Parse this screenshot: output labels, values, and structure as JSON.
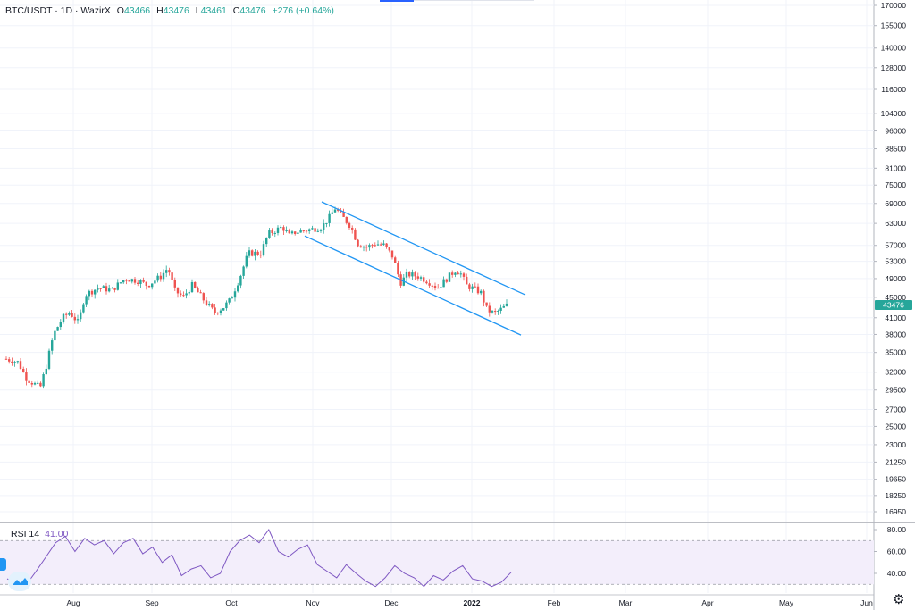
{
  "header": {
    "symbol": "BTC/USDT · 1D · WazirX",
    "open_label": "O",
    "open_value": "43466",
    "high_label": "H",
    "high_value": "43476",
    "low_label": "L",
    "low_value": "43461",
    "close_label": "C",
    "close_value": "43476",
    "change": "+276 (+0.64%)"
  },
  "rsi": {
    "label": "RSI 14",
    "value": "41.00"
  },
  "price_badge": "43476",
  "colors": {
    "up": "#26a69a",
    "down": "#ef5350",
    "channel": "#2196f3",
    "rsi": "#7e57c2",
    "rsi_band": "#f3eefb"
  },
  "icons": {
    "logo": "tradingview-logo-icon",
    "settings": "gear-icon"
  },
  "chart_data": [
    {
      "type": "candlestick",
      "title": "BTC/USDT · 1D · WazirX",
      "xlabel": "",
      "ylabel": "",
      "x_ticks": [
        "Aug",
        "Sep",
        "Oct",
        "Nov",
        "Dec",
        "2022",
        "Feb",
        "Mar",
        "Apr",
        "May",
        "Jun"
      ],
      "y_ticks": [
        170000,
        155000,
        140000,
        128000,
        116000,
        104000,
        96000,
        88500,
        81000,
        75000,
        69000,
        63000,
        57000,
        53000,
        49000,
        45000,
        41000,
        38000,
        35000,
        32000,
        29500,
        27000,
        25000,
        23000,
        21250,
        19650,
        18250,
        16950
      ],
      "y_scale": "log",
      "ylim": [
        16500,
        170000
      ],
      "last_price": 43476,
      "series": [
        {
          "ohlc_monthly_approx": [
            {
              "period": "late Jul",
              "open": 34500,
              "high": 35500,
              "low": 29500,
              "close": 35000
            },
            {
              "period": "Aug",
              "open": 41500,
              "high": 50000,
              "low": 37500,
              "close": 47000
            },
            {
              "period": "Sep",
              "open": 47000,
              "high": 52900,
              "low": 40500,
              "close": 43800
            },
            {
              "period": "Oct",
              "open": 43800,
              "high": 67000,
              "low": 43000,
              "close": 61000
            },
            {
              "period": "Nov",
              "open": 61000,
              "high": 69000,
              "low": 55500,
              "close": 57000
            },
            {
              "period": "Dec",
              "open": 57000,
              "high": 59000,
              "low": 46000,
              "close": 47000
            },
            {
              "period": "early Jan",
              "open": 47000,
              "high": 47600,
              "low": 40800,
              "close": 43476
            }
          ]
        }
      ],
      "annotations": [
        "descending channel upper line",
        "descending channel lower line"
      ],
      "grid": true
    },
    {
      "type": "line",
      "title": "RSI 14",
      "y_ticks": [
        80.0,
        60.0,
        40.0
      ],
      "ylim": [
        25,
        82
      ],
      "bands": [
        30,
        70
      ],
      "series": [
        {
          "name": "RSI 14",
          "values": [
            35,
            32,
            30,
            42,
            55,
            68,
            74,
            60,
            72,
            66,
            70,
            58,
            68,
            72,
            58,
            64,
            50,
            57,
            38,
            44,
            47,
            36,
            40,
            60,
            70,
            75,
            68,
            80,
            60,
            55,
            62,
            66,
            48,
            42,
            36,
            48,
            40,
            33,
            28,
            36,
            47,
            40,
            36,
            28,
            38,
            34,
            42,
            47,
            35,
            33,
            28,
            32,
            41
          ]
        }
      ]
    }
  ]
}
